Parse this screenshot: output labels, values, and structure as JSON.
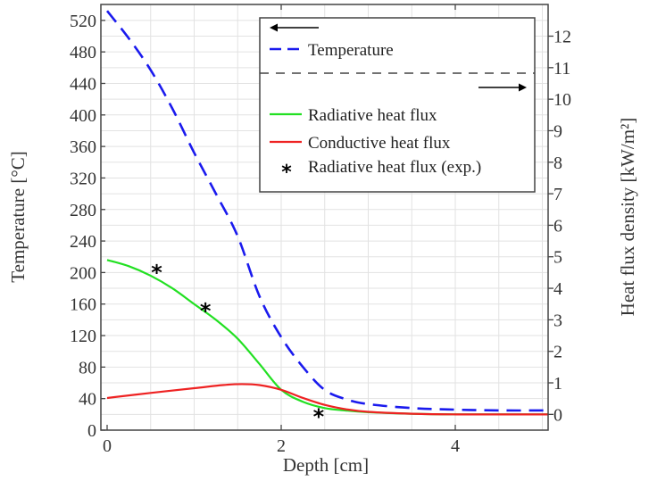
{
  "chart_data": {
    "type": "line",
    "title": "",
    "xlabel": "Depth [cm]",
    "ylabel_left": "Temperature [°C]",
    "ylabel_right": "Heat flux density [kW/m²]",
    "xlim": [
      -0.07,
      5.07
    ],
    "ylim_left": [
      0,
      540
    ],
    "ylim_right": [
      -0.5,
      13
    ],
    "x_ticks": [
      "0",
      "2",
      "4"
    ],
    "x_tick_values": [
      0,
      2,
      4
    ],
    "left_ticks": [
      "0",
      "40",
      "80",
      "120",
      "160",
      "200",
      "240",
      "280",
      "320",
      "360",
      "400",
      "440",
      "480",
      "520"
    ],
    "left_tick_values": [
      0,
      40,
      80,
      120,
      160,
      200,
      240,
      280,
      320,
      360,
      400,
      440,
      480,
      520
    ],
    "right_ticks": [
      "0",
      "1",
      "2",
      "3",
      "4",
      "5",
      "6",
      "7",
      "8",
      "9",
      "10",
      "11",
      "12"
    ],
    "right_tick_values": [
      0,
      1,
      2,
      3,
      4,
      5,
      6,
      7,
      8,
      9,
      10,
      11,
      12
    ],
    "grid": true,
    "legend_position": "top-right",
    "legend": {
      "left_arrow": "←",
      "right_arrow": "→",
      "entries": [
        "Temperature",
        "Radiative heat flux",
        "Conductive heat flux",
        "Radiative heat flux (exp.)"
      ]
    },
    "series": [
      {
        "name": "Temperature",
        "axis": "left",
        "color": "#1a1aee",
        "style": "dashed",
        "x": [
          0,
          0.25,
          0.5,
          0.75,
          1,
          1.25,
          1.5,
          1.75,
          2,
          2.25,
          2.5,
          2.75,
          3,
          3.5,
          4,
          4.5,
          5.07
        ],
        "y": [
          532,
          497,
          457,
          408,
          352,
          300,
          246,
          170,
          118,
          80,
          51,
          39,
          33,
          28,
          26,
          25,
          25
        ]
      },
      {
        "name": "Radiative heat flux",
        "axis": "right",
        "color": "#22e022",
        "style": "solid",
        "x": [
          0,
          0.25,
          0.5,
          0.75,
          1,
          1.25,
          1.5,
          1.75,
          2,
          2.25,
          2.5,
          2.75,
          3,
          3.5,
          4,
          5.07
        ],
        "y": [
          4.9,
          4.7,
          4.4,
          4.0,
          3.5,
          3.0,
          2.4,
          1.6,
          0.78,
          0.4,
          0.2,
          0.12,
          0.07,
          0.02,
          0.0,
          0.0
        ]
      },
      {
        "name": "Conductive heat flux",
        "axis": "right",
        "color": "#ee2222",
        "style": "solid",
        "x": [
          0,
          0.5,
          1,
          1.33,
          1.55,
          1.75,
          2,
          2.25,
          2.5,
          2.75,
          3,
          3.5,
          4,
          5.07
        ],
        "y": [
          0.52,
          0.68,
          0.83,
          0.93,
          0.96,
          0.93,
          0.78,
          0.52,
          0.3,
          0.16,
          0.08,
          0.02,
          0.0,
          0.0
        ]
      },
      {
        "name": "Radiative heat flux (exp.)",
        "axis": "right",
        "color": "#000000",
        "style": "markers",
        "x": [
          0.57,
          1.13,
          2.43
        ],
        "y": [
          4.55,
          3.33,
          -0.02
        ]
      }
    ]
  }
}
